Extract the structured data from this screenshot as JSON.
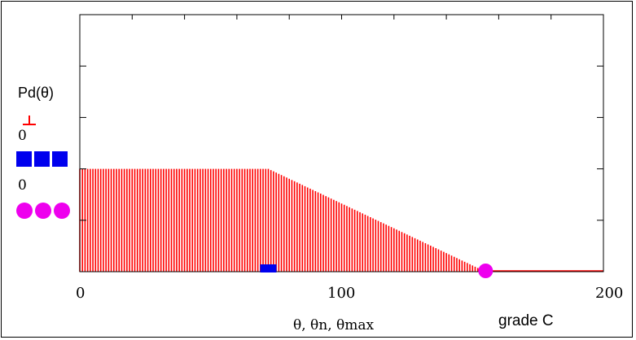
{
  "chart_data": {
    "type": "area",
    "series_name_label": "Pd(θ)",
    "x": [
      0,
      72,
      155,
      200
    ],
    "y": [
      1.0,
      1.0,
      0.0,
      0.0
    ],
    "xlim": [
      0,
      200
    ],
    "ylim": [
      0,
      2.5
    ],
    "x_ticks": [
      "0",
      "100",
      "200"
    ],
    "xlabel": "θ, θn, θmax",
    "ylabel": "Pd(θ)",
    "caption": "grade C",
    "theta_n": 72,
    "theta_max": 155,
    "legend": {
      "marker_n_value": "0",
      "marker_max_value": "0"
    },
    "colors": {
      "fill": "#ff0000",
      "marker_n": "#0000ee",
      "marker_max": "#ee00ee"
    },
    "grid": false
  }
}
